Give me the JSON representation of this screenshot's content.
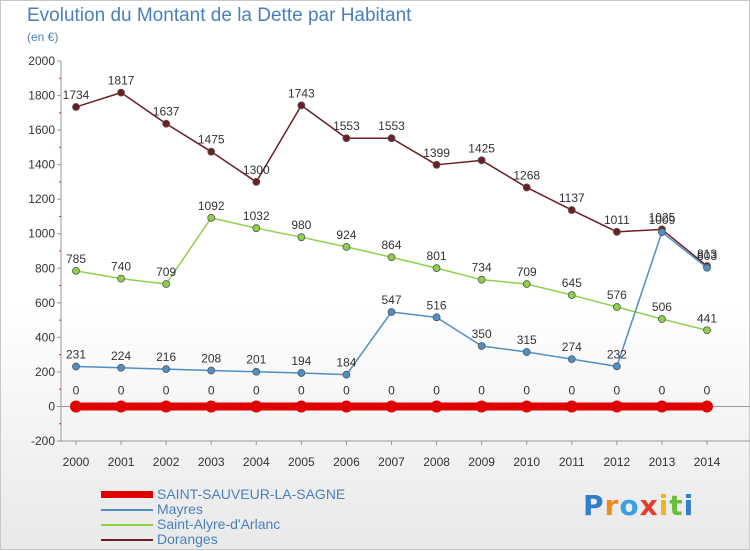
{
  "header": {
    "title": "Evolution du Montant de la Dette par Habitant",
    "unit": "(en €)"
  },
  "logo": {
    "text": "Proxiti"
  },
  "chart_data": {
    "type": "line",
    "x": [
      "2000",
      "2001",
      "2002",
      "2003",
      "2004",
      "2005",
      "2006",
      "2007",
      "2008",
      "2009",
      "2010",
      "2011",
      "2012",
      "2013",
      "2014"
    ],
    "ylim": [
      -200,
      2000
    ],
    "yticks": [
      -200,
      0,
      200,
      400,
      600,
      800,
      1000,
      1200,
      1400,
      1600,
      1800,
      2000
    ],
    "grid": false,
    "legend_position": "bottom-left",
    "series": [
      {
        "name": "SAINT-SAUVEUR-LA-SAGNE",
        "color": "#e00000",
        "values": [
          0,
          0,
          0,
          0,
          0,
          0,
          0,
          0,
          0,
          0,
          0,
          0,
          0,
          0,
          0
        ],
        "labels": [
          "0",
          "0",
          "0",
          "0",
          "0",
          "0",
          "0",
          "0",
          "0",
          "0",
          "0",
          "0",
          "0",
          "0",
          "0"
        ]
      },
      {
        "name": "Mayres",
        "color": "#4f8fc6",
        "values": [
          231,
          224,
          216,
          208,
          201,
          194,
          184,
          547,
          516,
          350,
          315,
          274,
          232,
          1009,
          803
        ],
        "labels": [
          "231",
          "224",
          "216",
          "208",
          "201",
          "194",
          "184",
          "547",
          "516",
          "350",
          "315",
          "274",
          "232",
          "1009",
          "803"
        ]
      },
      {
        "name": "Saint-Alyre-d'Arlanc",
        "color": "#8fd04a",
        "values": [
          785,
          740,
          709,
          1092,
          1032,
          980,
          924,
          864,
          801,
          734,
          709,
          645,
          576,
          506,
          441
        ],
        "labels": [
          "785",
          "740",
          "709",
          "1092",
          "1032",
          "980",
          "924",
          "864",
          "801",
          "734",
          "709",
          "645",
          "576",
          "506",
          "441"
        ]
      },
      {
        "name": "Doranges",
        "color": "#6b1f24",
        "values": [
          1734,
          1817,
          1637,
          1475,
          1300,
          1743,
          1553,
          1553,
          1399,
          1425,
          1268,
          1137,
          1011,
          1025,
          813
        ],
        "labels": [
          "1734",
          "1817",
          "1637",
          "1475",
          "1300",
          "1743",
          "1553",
          "1553",
          "1399",
          "1425",
          "1268",
          "1137",
          "1011",
          "1025",
          "813"
        ]
      }
    ]
  }
}
